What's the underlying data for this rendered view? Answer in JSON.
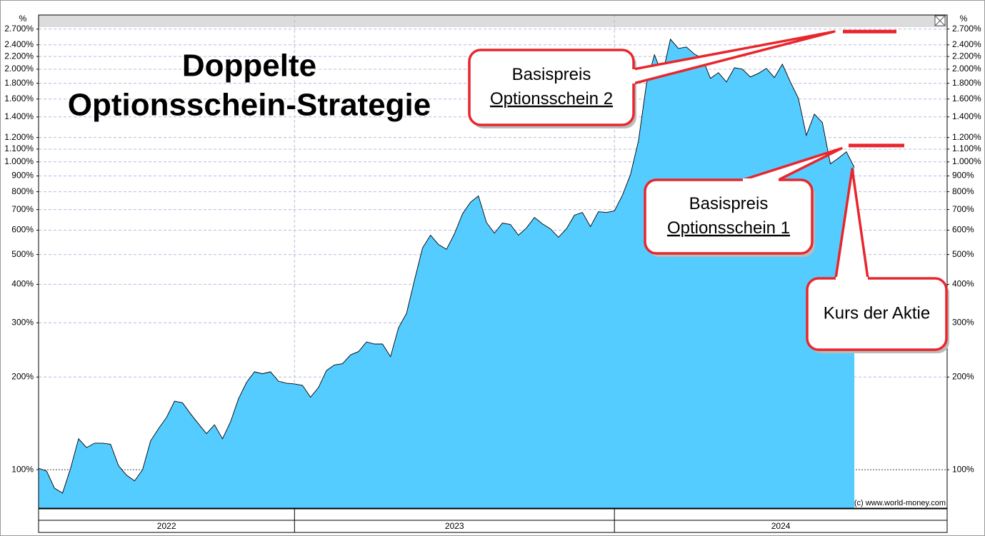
{
  "chart_data": {
    "type": "area",
    "title": [
      "Doppelte",
      "Optionsschein-Strategie"
    ],
    "y_unit": "%",
    "source": "(c) www.world-money.com",
    "ylog": true,
    "grid": true,
    "color": "#55ccff",
    "xlim": [
      2022.2,
      2025.04
    ],
    "xticks": [
      2022,
      2023,
      2024
    ],
    "ylim": [
      75,
      3000
    ],
    "yticks": [
      {
        "value": 100,
        "label": "100%"
      },
      {
        "value": 200,
        "label": "200%"
      },
      {
        "value": 300,
        "label": "300%"
      },
      {
        "value": 400,
        "label": "400%"
      },
      {
        "value": 500,
        "label": "500%"
      },
      {
        "value": 600,
        "label": "600%"
      },
      {
        "value": 700,
        "label": "700%"
      },
      {
        "value": 800,
        "label": "800%"
      },
      {
        "value": 900,
        "label": "900%"
      },
      {
        "value": 1000,
        "label": "1.000%"
      },
      {
        "value": 1100,
        "label": "1.100%"
      },
      {
        "value": 1200,
        "label": "1.200%"
      },
      {
        "value": 1400,
        "label": "1.400%"
      },
      {
        "value": 1600,
        "label": "1.600%"
      },
      {
        "value": 1800,
        "label": "1.800%"
      },
      {
        "value": 2000,
        "label": "2.000%"
      },
      {
        "value": 2200,
        "label": "2.200%"
      },
      {
        "value": 2400,
        "label": "2.400%"
      },
      {
        "value": 2700,
        "label": "2.700%"
      }
    ],
    "x": [
      2022.2,
      2022.225,
      2022.25,
      2022.275,
      2022.3,
      2022.325,
      2022.35,
      2022.375,
      2022.4,
      2022.425,
      2022.45,
      2022.475,
      2022.5,
      2022.525,
      2022.55,
      2022.575,
      2022.6,
      2022.625,
      2022.65,
      2022.675,
      2022.7,
      2022.725,
      2022.75,
      2022.775,
      2022.8,
      2022.825,
      2022.85,
      2022.875,
      2022.9,
      2022.925,
      2022.95,
      2022.975,
      2023.0,
      2023.025,
      2023.05,
      2023.075,
      2023.1,
      2023.125,
      2023.15,
      2023.175,
      2023.2,
      2023.225,
      2023.25,
      2023.275,
      2023.3,
      2023.325,
      2023.35,
      2023.375,
      2023.4,
      2023.425,
      2023.45,
      2023.475,
      2023.5,
      2023.525,
      2023.55,
      2023.575,
      2023.6,
      2023.625,
      2023.65,
      2023.675,
      2023.7,
      2023.725,
      2023.75,
      2023.775,
      2023.8,
      2023.825,
      2023.85,
      2023.875,
      2023.9,
      2023.925,
      2023.95,
      2023.975,
      2024.0,
      2024.025,
      2024.05,
      2024.075,
      2024.1,
      2024.125,
      2024.15,
      2024.175,
      2024.2,
      2024.225,
      2024.25,
      2024.275,
      2024.3,
      2024.325,
      2024.35,
      2024.375,
      2024.4,
      2024.425,
      2024.45,
      2024.475,
      2024.5,
      2024.525,
      2024.55,
      2024.575,
      2024.6,
      2024.625,
      2024.65,
      2024.675,
      2024.7,
      2024.725,
      2024.75
    ],
    "values": [
      101,
      99,
      87,
      84,
      101,
      126,
      118,
      122,
      122,
      121,
      103,
      96,
      92,
      100,
      124,
      136,
      148,
      167,
      165,
      152,
      141,
      131,
      140,
      126,
      143,
      170,
      192,
      208,
      205,
      208,
      194,
      191,
      190,
      188,
      172,
      185,
      210,
      219,
      221,
      236,
      242,
      260,
      256,
      256,
      233,
      289,
      322,
      413,
      525,
      578,
      539,
      520,
      584,
      678,
      739,
      775,
      636,
      587,
      633,
      626,
      578,
      610,
      660,
      629,
      606,
      569,
      606,
      671,
      685,
      616,
      689,
      685,
      693,
      779,
      909,
      1168,
      1790,
      2227,
      1918,
      2504,
      2336,
      2362,
      2239,
      2168,
      1867,
      1949,
      1818,
      2022,
      2001,
      1887,
      1939,
      2012,
      1878,
      2077,
      1818,
      1609,
      1219,
      1430,
      1342,
      985,
      1028,
      1078,
      959
    ],
    "annotations": [
      {
        "lines": [
          "Basispreis",
          "Optionsschein 2"
        ],
        "value": 2650
      },
      {
        "lines": [
          "Basispreis",
          "Optionsschein 1"
        ],
        "value": 1130
      },
      {
        "lines": [
          "Kurs der Aktie"
        ]
      }
    ]
  }
}
